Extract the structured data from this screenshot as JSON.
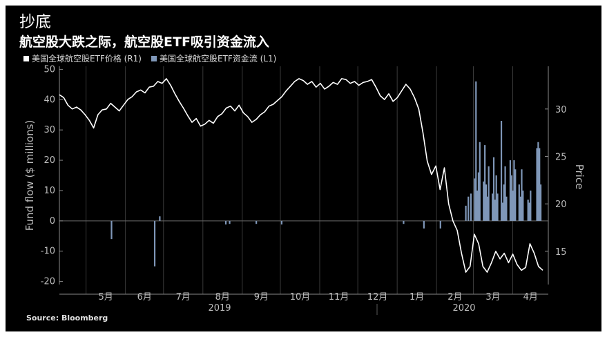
{
  "title": "抄底",
  "subtitle": "航空股大跌之际，航空股ETF吸引资金流入",
  "legend": {
    "price_label": "美国全球航空股ETF价格 (R1)",
    "flow_label": "美国全球航空股ETF资金流 (L1)"
  },
  "source": "Source: Bloomberg",
  "colors": {
    "background": "#000000",
    "price_line": "#ffffff",
    "flow_bars": "#7f97b8",
    "grid": "#3a3a3a"
  },
  "chart_data": {
    "type": "bar+line",
    "title": "抄底",
    "subtitle": "航空股大跌之际，航空股ETF吸引资金流入",
    "ylabel": "Fund flow ($ millions)",
    "y2label": "Price",
    "ylim": [
      -21,
      51
    ],
    "y2lim": [
      11.5,
      34.5
    ],
    "yticks": [
      -20,
      -10,
      0,
      10,
      20,
      30,
      40,
      50
    ],
    "y2ticks": [
      15,
      20,
      25,
      30
    ],
    "month_ticks": [
      "5月",
      "6月",
      "7月",
      "8月",
      "9月",
      "10月",
      "11月",
      "12月",
      "1月",
      "2月",
      "3月",
      "4月"
    ],
    "year_labels": [
      "2019",
      "2020"
    ],
    "grid": true,
    "legend_position": "top-left",
    "series": [
      {
        "name": "美国全球航空股ETF价格 (R1)",
        "type": "line",
        "axis": "right",
        "values": [
          31.5,
          31.2,
          30.4,
          30.0,
          30.2,
          29.9,
          29.4,
          28.8,
          28.0,
          29.4,
          29.9,
          30.0,
          30.6,
          30.2,
          29.8,
          30.4,
          31.0,
          31.3,
          31.8,
          32.0,
          31.7,
          32.3,
          32.4,
          32.9,
          32.7,
          33.2,
          32.5,
          31.6,
          30.8,
          30.1,
          29.3,
          28.6,
          29.0,
          28.2,
          28.4,
          28.8,
          28.5,
          29.2,
          29.5,
          30.1,
          30.3,
          29.8,
          30.4,
          29.6,
          29.2,
          28.6,
          28.9,
          29.4,
          29.7,
          30.3,
          30.5,
          30.9,
          31.3,
          31.9,
          32.4,
          32.9,
          33.2,
          33.0,
          32.6,
          32.9,
          32.3,
          32.7,
          32.1,
          32.4,
          32.8,
          32.6,
          33.2,
          33.1,
          32.7,
          32.9,
          32.5,
          32.8,
          32.9,
          33.1,
          32.3,
          31.4,
          31.0,
          31.6,
          30.8,
          31.2,
          31.9,
          32.6,
          32.1,
          31.2,
          30.0,
          27.5,
          24.5,
          23.1,
          24.0,
          21.5,
          23.8,
          20.0,
          18.2,
          17.2,
          14.8,
          12.8,
          13.4,
          16.8,
          15.8,
          13.4,
          12.8,
          13.8,
          15.0,
          14.2,
          14.8,
          13.8,
          14.7,
          13.6,
          13.0,
          13.3,
          15.8,
          14.8,
          13.4,
          13.0
        ]
      },
      {
        "name": "美国全球航空股ETF资金流 (L1)",
        "type": "bar",
        "axis": "left",
        "values": [
          {
            "date": "2019-05-21",
            "value": -6
          },
          {
            "date": "2019-06-24",
            "value": -15
          },
          {
            "date": "2019-06-28",
            "value": 1.5
          },
          {
            "date": "2019-08-19",
            "value": -1.2
          },
          {
            "date": "2019-08-22",
            "value": -1.0
          },
          {
            "date": "2019-09-12",
            "value": -1.0
          },
          {
            "date": "2019-10-02",
            "value": -1.2
          },
          {
            "date": "2020-01-06",
            "value": -1.0
          },
          {
            "date": "2020-01-22",
            "value": -2.5
          },
          {
            "date": "2020-02-04",
            "value": -2.5
          },
          {
            "date": "2020-02-24",
            "value": 5
          },
          {
            "date": "2020-02-26",
            "value": 8
          },
          {
            "date": "2020-02-28",
            "value": 9
          },
          {
            "date": "2020-03-02",
            "value": 14
          },
          {
            "date": "2020-03-03",
            "value": 46
          },
          {
            "date": "2020-03-04",
            "value": 10
          },
          {
            "date": "2020-03-05",
            "value": 16
          },
          {
            "date": "2020-03-06",
            "value": 26
          },
          {
            "date": "2020-03-09",
            "value": 13
          },
          {
            "date": "2020-03-10",
            "value": 25
          },
          {
            "date": "2020-03-11",
            "value": 12
          },
          {
            "date": "2020-03-12",
            "value": 8
          },
          {
            "date": "2020-03-13",
            "value": 18
          },
          {
            "date": "2020-03-16",
            "value": 9
          },
          {
            "date": "2020-03-17",
            "value": 21
          },
          {
            "date": "2020-03-18",
            "value": 7
          },
          {
            "date": "2020-03-19",
            "value": 15
          },
          {
            "date": "2020-03-20",
            "value": 9
          },
          {
            "date": "2020-03-23",
            "value": 33
          },
          {
            "date": "2020-03-24",
            "value": 6
          },
          {
            "date": "2020-03-25",
            "value": 12
          },
          {
            "date": "2020-03-26",
            "value": 18
          },
          {
            "date": "2020-03-27",
            "value": 8
          },
          {
            "date": "2020-03-30",
            "value": 20
          },
          {
            "date": "2020-03-31",
            "value": 15
          },
          {
            "date": "2020-04-01",
            "value": 10
          },
          {
            "date": "2020-04-02",
            "value": 20
          },
          {
            "date": "2020-04-03",
            "value": 17
          },
          {
            "date": "2020-04-06",
            "value": 12
          },
          {
            "date": "2020-04-07",
            "value": 8
          },
          {
            "date": "2020-04-08",
            "value": 17
          },
          {
            "date": "2020-04-09",
            "value": 10
          },
          {
            "date": "2020-04-13",
            "value": 7
          },
          {
            "date": "2020-04-14",
            "value": 6
          },
          {
            "date": "2020-04-15",
            "value": 10
          },
          {
            "date": "2020-04-20",
            "value": 24
          },
          {
            "date": "2020-04-21",
            "value": 26
          },
          {
            "date": "2020-04-22",
            "value": 24
          },
          {
            "date": "2020-04-23",
            "value": 12
          }
        ]
      }
    ]
  }
}
